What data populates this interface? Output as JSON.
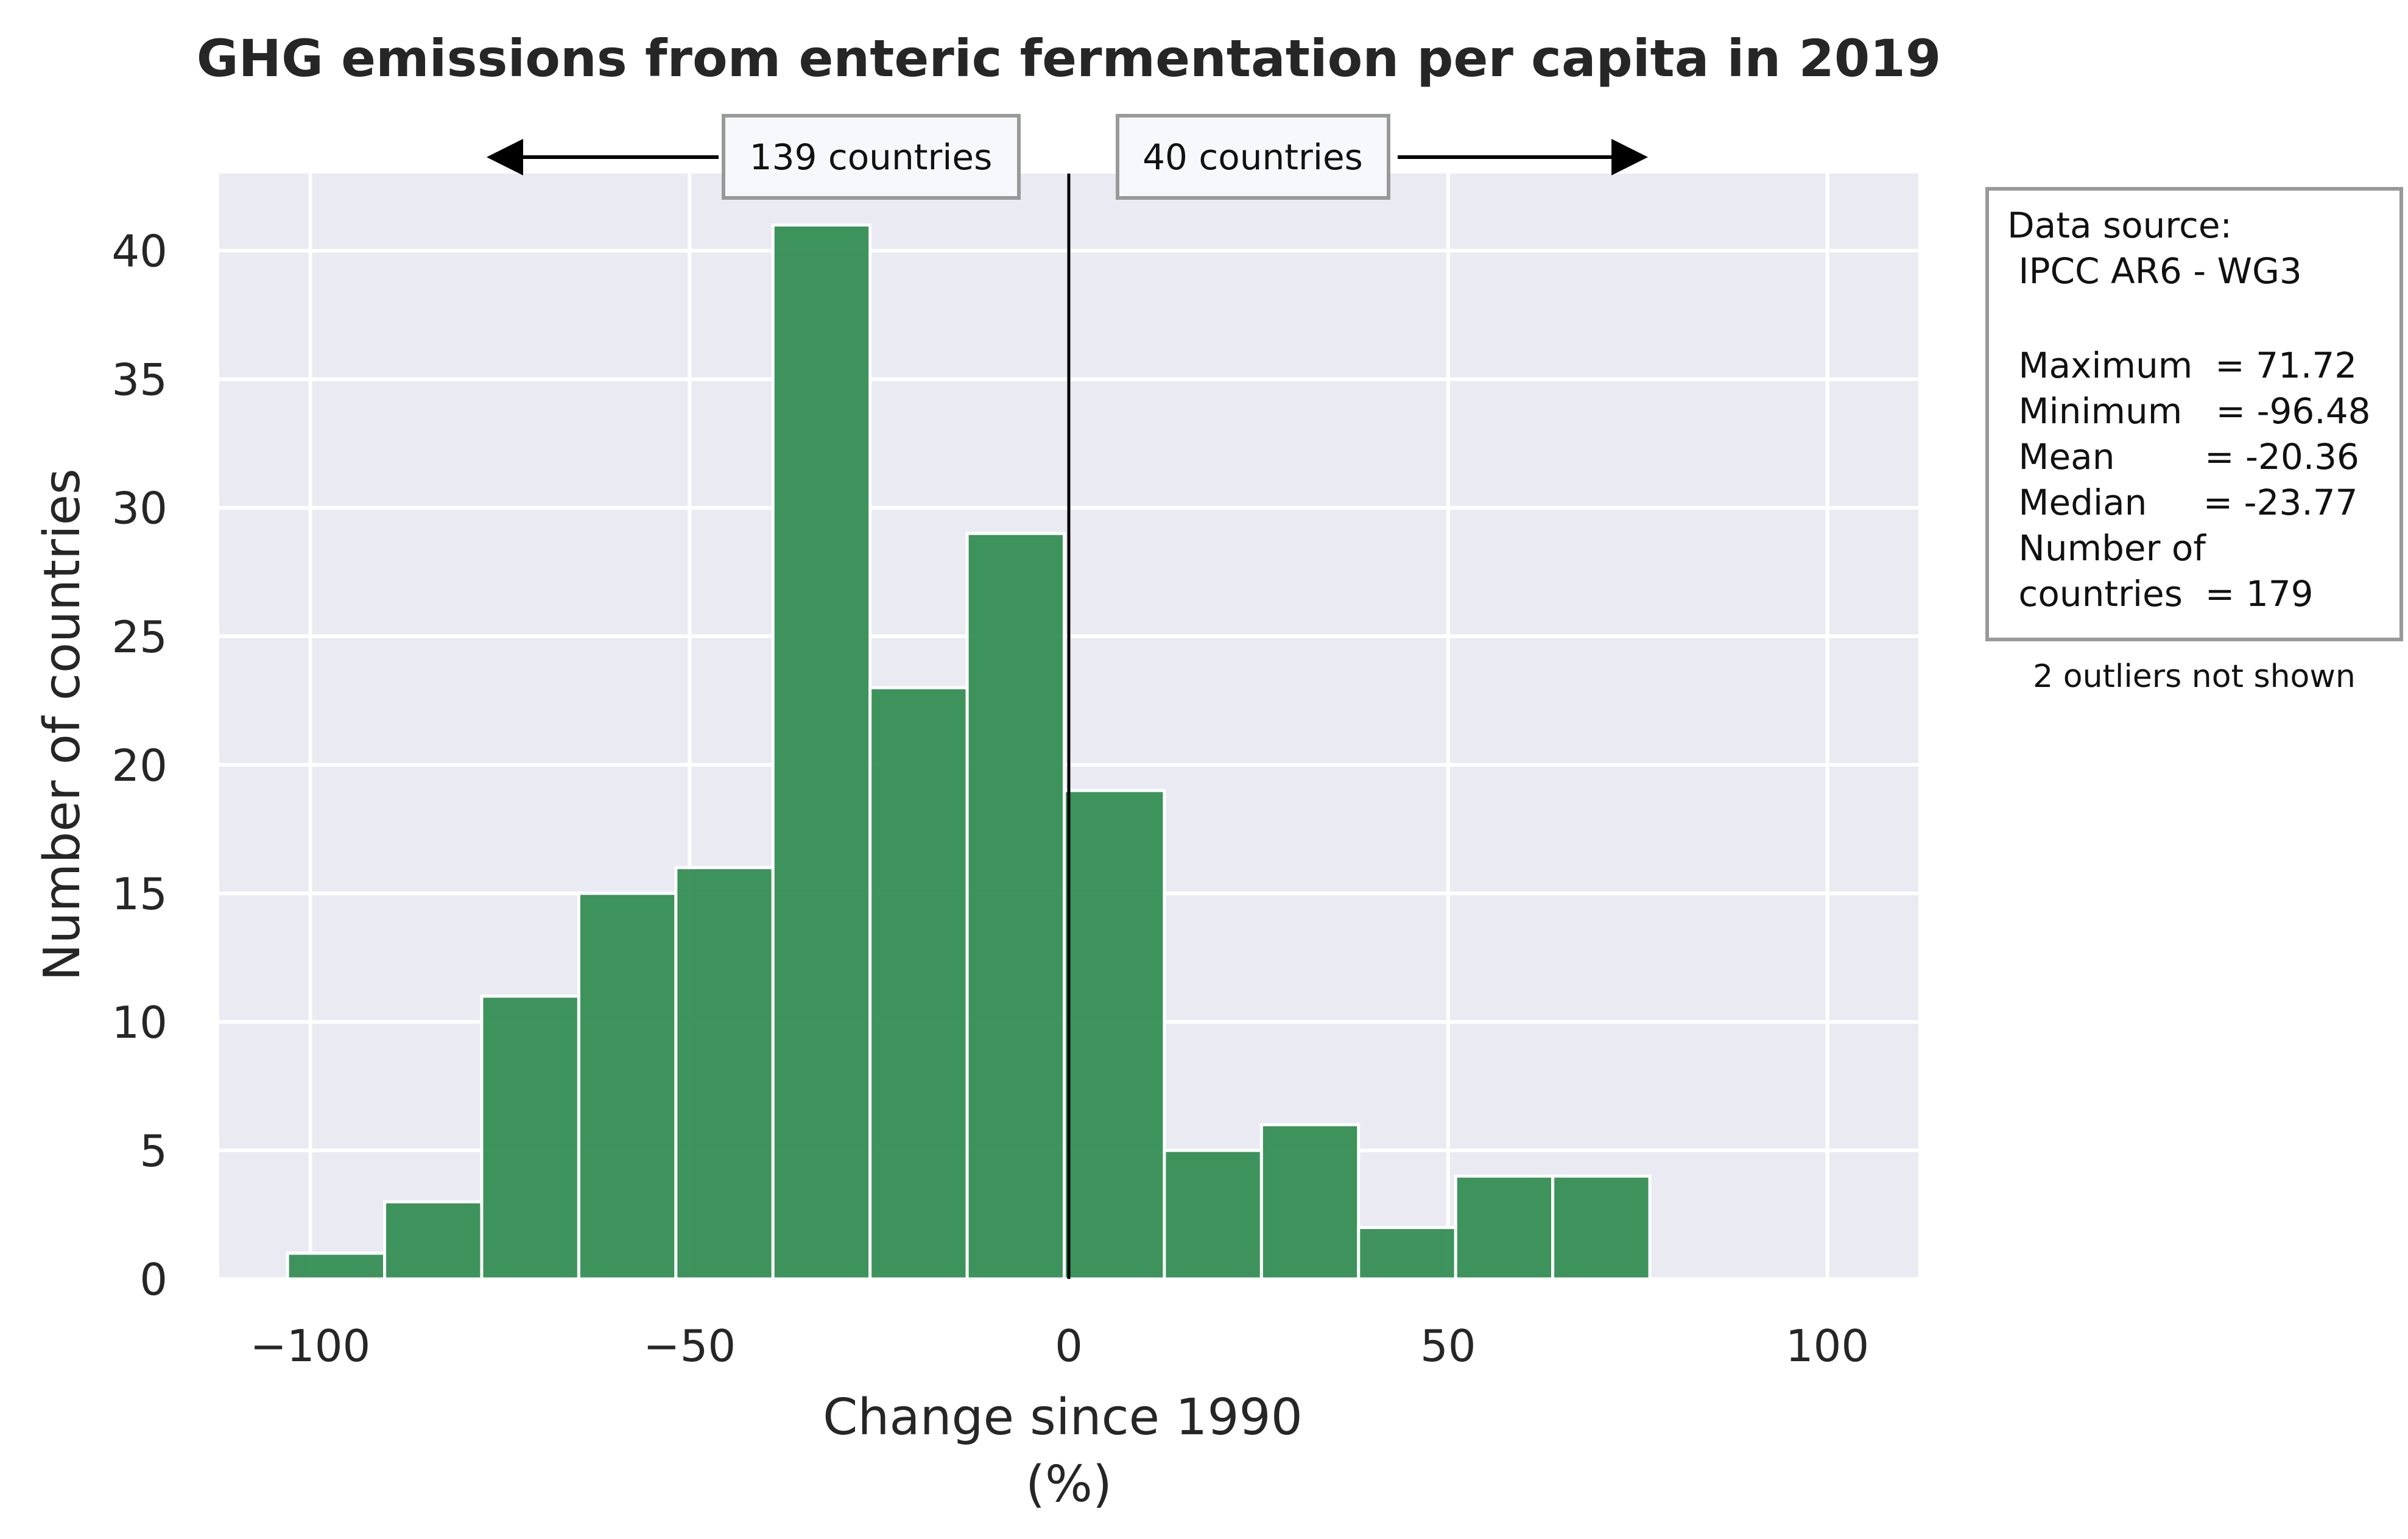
{
  "chart_data": {
    "type": "bar",
    "title": "GHG emissions from enteric fermentation per capita in 2019",
    "xlabel": "Change since 1990",
    "xlabel_unit": "(%)",
    "ylabel": "Number of countries",
    "xlim": [
      -112,
      112
    ],
    "ylim": [
      0,
      43
    ],
    "xticks": [
      -100,
      -50,
      0,
      50,
      100
    ],
    "xtick_labels": [
      "−100",
      "−50",
      "0",
      "50",
      "100"
    ],
    "yticks": [
      0,
      5,
      10,
      15,
      20,
      25,
      30,
      35,
      40
    ],
    "ytick_labels": [
      "0",
      "5",
      "10",
      "15",
      "20",
      "25",
      "30",
      "35",
      "40"
    ],
    "grid": true,
    "bar_color": "#2e8b4e",
    "background_color": "#eaeaf2",
    "reference_line_x": 0,
    "bins": [
      {
        "x0": -103,
        "x1": -90.2,
        "count": 1
      },
      {
        "x0": -90.2,
        "x1": -77.4,
        "count": 3
      },
      {
        "x0": -77.4,
        "x1": -64.6,
        "count": 11
      },
      {
        "x0": -64.6,
        "x1": -51.8,
        "count": 15
      },
      {
        "x0": -51.8,
        "x1": -39.0,
        "count": 16
      },
      {
        "x0": -39.0,
        "x1": -26.2,
        "count": 41
      },
      {
        "x0": -26.2,
        "x1": -13.4,
        "count": 23
      },
      {
        "x0": -13.4,
        "x1": -0.6,
        "count": 29
      },
      {
        "x0": -0.6,
        "x1": 12.6,
        "count": 19
      },
      {
        "x0": 12.6,
        "x1": 25.4,
        "count": 5
      },
      {
        "x0": 25.4,
        "x1": 38.2,
        "count": 6
      },
      {
        "x0": 38.2,
        "x1": 51.0,
        "count": 2
      },
      {
        "x0": 51.0,
        "x1": 63.8,
        "count": 4
      },
      {
        "x0": 63.8,
        "x1": 76.6,
        "count": 4
      }
    ],
    "annotations": {
      "left_count_label": "139 countries",
      "right_count_label": "40 countries",
      "left_arrow_to_x": -77.4,
      "right_arrow_to_x": 77
    }
  },
  "stats_box": {
    "lines": [
      "Data source:",
      " IPCC AR6 - WG3",
      "",
      " Maximum  = 71.72",
      " Minimum   = -96.48",
      " Mean        = -20.36",
      " Median     = -23.77",
      " Number of",
      " countries  = 179"
    ]
  },
  "note": "2 outliers not shown"
}
